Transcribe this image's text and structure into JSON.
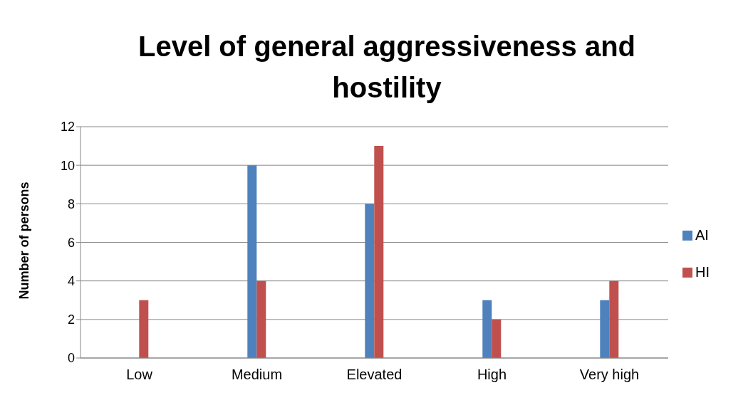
{
  "chart_data": {
    "type": "bar",
    "title": "Level of general aggressiveness and hostility",
    "ylabel": "Number of persons",
    "categories": [
      "Low",
      "Medium",
      "Elevated",
      "High",
      "Very high"
    ],
    "series": [
      {
        "name": "AI",
        "color": "#4f81bd",
        "values": [
          0,
          10,
          8,
          3,
          3
        ]
      },
      {
        "name": "HI",
        "color": "#c0504d",
        "values": [
          3,
          4,
          11,
          2,
          4
        ]
      }
    ],
    "ylim": [
      0,
      12
    ],
    "yticks": [
      0,
      2,
      4,
      6,
      8,
      10,
      12
    ],
    "grid": "y",
    "legend": "right"
  }
}
